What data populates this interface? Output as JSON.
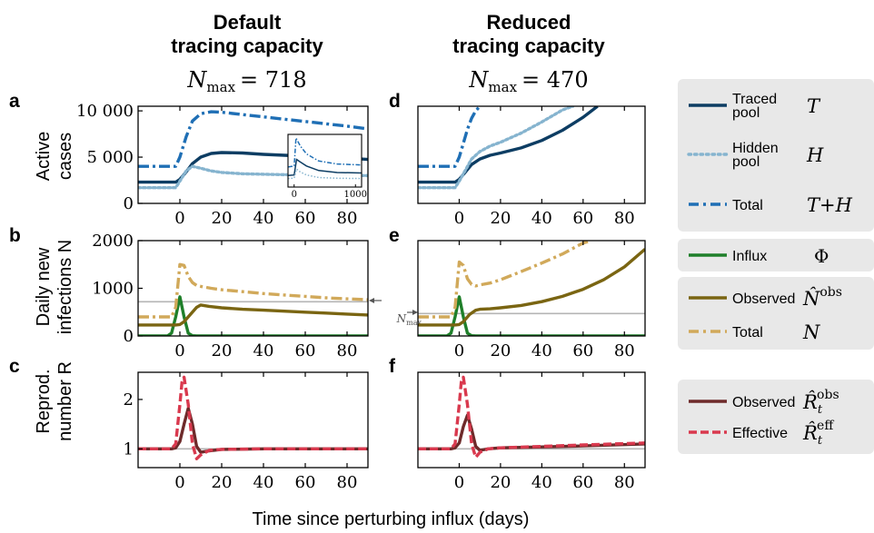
{
  "figure": {
    "xlabel": "Time since perturbing influx (days)",
    "columns": [
      {
        "title_line1": "Default",
        "title_line2": "tracing capacity",
        "nmax_label": "N",
        "nmax_sub": "max",
        "nmax_value": "= 718"
      },
      {
        "title_line1": "Reduced",
        "title_line2": "tracing capacity",
        "nmax_label": "N",
        "nmax_sub": "max",
        "nmax_value": "= 470"
      }
    ],
    "rows": [
      {
        "ylabel_line1": "Active",
        "ylabel_line2": "cases"
      },
      {
        "ylabel_line1": "Daily new",
        "ylabel_line2": "infections N"
      },
      {
        "ylabel_line1": "Reprod.",
        "ylabel_line2": "number R"
      }
    ],
    "panel_letters": [
      "a",
      "b",
      "c",
      "d",
      "e",
      "f"
    ],
    "nmax_annotation": "N",
    "nmax_annotation_sub": "max"
  },
  "legends": {
    "cases": [
      {
        "label_line1": "Traced",
        "label_line2": "pool",
        "symbol": "T",
        "color": "#0d3d63",
        "style": "solid"
      },
      {
        "label_line1": "Hidden",
        "label_line2": "pool",
        "symbol": "H",
        "color": "#86b4cf",
        "style": "dotted"
      },
      {
        "label_line1": "Total",
        "label_line2": "",
        "symbol": "T+H",
        "color": "#1f6fb5",
        "style": "dashdot"
      }
    ],
    "influx": {
      "label": "Influx",
      "symbol": "Φ",
      "color": "#1f7f2a",
      "style": "solid"
    },
    "infections": [
      {
        "label": "Observed",
        "symbol": "N̂",
        "sup": "obs",
        "color": "#7a6512",
        "style": "solid"
      },
      {
        "label": "Total",
        "symbol": "N",
        "sup": "",
        "color": "#d1a95a",
        "style": "dashdot"
      }
    ],
    "repro": [
      {
        "label": "Observed",
        "symbol": "R̂",
        "sub": "t",
        "sup": "obs",
        "color": "#6e2a2a",
        "style": "solid"
      },
      {
        "label": "Effective",
        "symbol": "R̂",
        "sub": "t",
        "sup": "eff",
        "color": "#d9394e",
        "style": "dashed"
      }
    ]
  },
  "chart_data": [
    {
      "panel": "a",
      "type": "line",
      "xlim": [
        -20,
        90
      ],
      "ylim": [
        0,
        10500
      ],
      "xticks": [
        0,
        20,
        40,
        60,
        80
      ],
      "xtick_labels": [
        "0",
        "20",
        "40",
        "60",
        "80"
      ],
      "yticks": [
        0,
        5000,
        10000
      ],
      "ytick_labels": [
        "0",
        "5 000",
        "10 000"
      ],
      "series": [
        {
          "key": "T",
          "color": "#0d3d63",
          "style": "solid",
          "x": [
            -20,
            -2,
            0,
            3,
            6,
            10,
            15,
            20,
            30,
            40,
            50,
            60,
            70,
            80,
            90
          ],
          "y": [
            2300,
            2300,
            2600,
            3400,
            4300,
            5000,
            5400,
            5500,
            5450,
            5300,
            5200,
            5100,
            5000,
            4900,
            4750
          ]
        },
        {
          "key": "H",
          "color": "#86b4cf",
          "style": "dotted",
          "x": [
            -20,
            -2,
            0,
            3,
            6,
            10,
            15,
            20,
            30,
            40,
            50,
            60,
            70,
            80,
            90
          ],
          "y": [
            1700,
            1700,
            2400,
            3500,
            4000,
            3800,
            3500,
            3350,
            3200,
            3150,
            3100,
            3080,
            3050,
            3030,
            3000
          ]
        },
        {
          "key": "T+H",
          "color": "#1f6fb5",
          "style": "dashdot",
          "x": [
            -20,
            -2,
            0,
            3,
            6,
            10,
            15,
            20,
            30,
            40,
            50,
            60,
            70,
            80,
            90
          ],
          "y": [
            4000,
            4000,
            5000,
            7200,
            8900,
            9700,
            9900,
            9850,
            9600,
            9350,
            9100,
            8850,
            8600,
            8350,
            8050
          ]
        }
      ],
      "inset": {
        "xlim": [
          -100,
          1100
        ],
        "ylim": [
          0,
          10500
        ],
        "xticks": [
          0,
          1000
        ],
        "xtick_labels": [
          "0",
          "1000"
        ],
        "series": [
          {
            "key": "T",
            "color": "#0d3d63",
            "style": "solid",
            "x": [
              -100,
              0,
              40,
              100,
              200,
              400,
              700,
              1100
            ],
            "y": [
              2300,
              2400,
              5500,
              5000,
              4200,
              3300,
              2900,
              2800
            ]
          },
          {
            "key": "H",
            "color": "#86b4cf",
            "style": "dotted",
            "x": [
              -100,
              0,
              40,
              100,
              200,
              400,
              700,
              1100
            ],
            "y": [
              1700,
              1800,
              3600,
              3000,
              2400,
              1900,
              1750,
              1700
            ]
          },
          {
            "key": "T+H",
            "color": "#1f6fb5",
            "style": "dashdot",
            "x": [
              -100,
              0,
              30,
              100,
              200,
              400,
              700,
              1100
            ],
            "y": [
              4000,
              4200,
              9800,
              8200,
              6600,
              5200,
              4600,
              4400
            ]
          }
        ]
      }
    },
    {
      "panel": "d",
      "type": "line",
      "xlim": [
        -20,
        90
      ],
      "ylim": [
        0,
        10500
      ],
      "xticks": [
        0,
        20,
        40,
        60,
        80
      ],
      "xtick_labels": [
        "0",
        "20",
        "40",
        "60",
        "80"
      ],
      "series": [
        {
          "key": "T",
          "color": "#0d3d63",
          "style": "solid",
          "x": [
            -20,
            -2,
            0,
            3,
            6,
            10,
            15,
            20,
            30,
            40,
            50,
            60,
            67
          ],
          "y": [
            2300,
            2300,
            2600,
            3400,
            4200,
            4800,
            5200,
            5450,
            6000,
            6800,
            7900,
            9300,
            10500
          ]
        },
        {
          "key": "H",
          "color": "#86b4cf",
          "style": "dotted",
          "x": [
            -20,
            -2,
            0,
            3,
            6,
            10,
            15,
            20,
            30,
            40,
            50,
            55
          ],
          "y": [
            1700,
            1700,
            2400,
            3600,
            4800,
            5600,
            6200,
            6600,
            7600,
            8800,
            10100,
            10500
          ]
        },
        {
          "key": "T+H",
          "color": "#1f6fb5",
          "style": "dashdot",
          "x": [
            -20,
            -2,
            0,
            2,
            4,
            6,
            8,
            10
          ],
          "y": [
            4000,
            4000,
            5000,
            6500,
            8000,
            9200,
            10000,
            10500
          ]
        }
      ]
    },
    {
      "panel": "b",
      "type": "line",
      "xlim": [
        -20,
        90
      ],
      "ylim": [
        0,
        2000
      ],
      "xticks": [
        0,
        20,
        40,
        60,
        80
      ],
      "xtick_labels": [
        "0",
        "20",
        "40",
        "60",
        "80"
      ],
      "yticks": [
        0,
        1000,
        2000
      ],
      "ytick_labels": [
        "0",
        "1000",
        "2000"
      ],
      "nmax": 718,
      "series": [
        {
          "key": "Phi",
          "color": "#1f7f2a",
          "style": "solid",
          "x": [
            -20,
            -6,
            -4,
            -2,
            0,
            2,
            4,
            6,
            8,
            90
          ],
          "y": [
            0,
            0,
            60,
            400,
            820,
            400,
            60,
            5,
            0,
            0
          ]
        },
        {
          "key": "N_obs",
          "color": "#7a6512",
          "style": "solid",
          "x": [
            -20,
            -2,
            0,
            2,
            5,
            8,
            10,
            14,
            20,
            30,
            40,
            50,
            60,
            70,
            80,
            90
          ],
          "y": [
            230,
            230,
            240,
            300,
            450,
            600,
            650,
            620,
            590,
            560,
            540,
            520,
            500,
            480,
            460,
            440
          ]
        },
        {
          "key": "N",
          "color": "#d1a95a",
          "style": "dashdot",
          "x": [
            -20,
            -4,
            -2,
            0,
            2,
            4,
            6,
            8,
            10,
            15,
            20,
            30,
            40,
            50,
            60,
            70,
            80,
            90
          ],
          "y": [
            400,
            400,
            600,
            1500,
            1480,
            1250,
            1120,
            1060,
            1040,
            1000,
            970,
            930,
            890,
            860,
            830,
            800,
            780,
            760
          ]
        }
      ]
    },
    {
      "panel": "e",
      "type": "line",
      "xlim": [
        -20,
        90
      ],
      "ylim": [
        0,
        2000
      ],
      "xticks": [
        0,
        20,
        40,
        60,
        80
      ],
      "xtick_labels": [
        "0",
        "20",
        "40",
        "60",
        "80"
      ],
      "nmax": 470,
      "series": [
        {
          "key": "Phi",
          "color": "#1f7f2a",
          "style": "solid",
          "x": [
            -20,
            -6,
            -4,
            -2,
            0,
            2,
            4,
            6,
            8,
            90
          ],
          "y": [
            0,
            0,
            60,
            400,
            820,
            400,
            60,
            5,
            0,
            0
          ]
        },
        {
          "key": "N_obs",
          "color": "#7a6512",
          "style": "solid",
          "x": [
            -20,
            -2,
            0,
            2,
            5,
            8,
            10,
            15,
            20,
            30,
            40,
            50,
            60,
            70,
            80,
            90
          ],
          "y": [
            230,
            230,
            240,
            300,
            450,
            540,
            560,
            570,
            590,
            640,
            720,
            830,
            980,
            1180,
            1450,
            1820
          ]
        },
        {
          "key": "N",
          "color": "#d1a95a",
          "style": "dashdot",
          "x": [
            -20,
            -4,
            -2,
            0,
            2,
            4,
            6,
            8,
            10,
            15,
            20,
            30,
            40,
            50,
            60,
            64
          ],
          "y": [
            400,
            400,
            600,
            1550,
            1480,
            1200,
            1080,
            1050,
            1070,
            1110,
            1180,
            1350,
            1530,
            1720,
            1950,
            2000
          ]
        }
      ]
    },
    {
      "panel": "c",
      "type": "line",
      "xlim": [
        -20,
        90
      ],
      "ylim": [
        0.62,
        2.55
      ],
      "xticks": [
        0,
        20,
        40,
        60,
        80
      ],
      "xtick_labels": [
        "0",
        "20",
        "40",
        "60",
        "80"
      ],
      "yticks": [
        1,
        2
      ],
      "ytick_labels": [
        "1",
        "2"
      ],
      "reference": 1,
      "series": [
        {
          "key": "R_obs",
          "color": "#6e2a2a",
          "style": "solid",
          "x": [
            -20,
            -4,
            -2,
            0,
            2,
            4,
            6,
            8,
            10,
            14,
            20,
            40,
            60,
            90
          ],
          "y": [
            1,
            1,
            1.02,
            1.15,
            1.5,
            1.82,
            1.5,
            1.05,
            0.93,
            0.96,
            0.99,
            1,
            1,
            1
          ]
        },
        {
          "key": "R_eff",
          "color": "#d9394e",
          "style": "dashed",
          "x": [
            -20,
            -4,
            -2,
            0,
            1,
            2,
            4,
            6,
            8,
            10,
            14,
            20,
            40,
            60,
            90
          ],
          "y": [
            1,
            1,
            1.1,
            1.9,
            2.35,
            2.45,
            1.9,
            1.1,
            0.8,
            0.88,
            0.97,
            0.99,
            1,
            1,
            1
          ]
        }
      ]
    },
    {
      "panel": "f",
      "type": "line",
      "xlim": [
        -20,
        90
      ],
      "ylim": [
        0.62,
        2.55
      ],
      "xticks": [
        0,
        20,
        40,
        60,
        80
      ],
      "xtick_labels": [
        "0",
        "20",
        "40",
        "60",
        "80"
      ],
      "reference": 1,
      "series": [
        {
          "key": "R_obs",
          "color": "#6e2a2a",
          "style": "solid",
          "x": [
            -20,
            -4,
            -2,
            0,
            2,
            4,
            6,
            8,
            10,
            14,
            20,
            40,
            60,
            90
          ],
          "y": [
            1,
            1,
            1.02,
            1.12,
            1.45,
            1.68,
            1.4,
            1.05,
            0.97,
            1.0,
            1.02,
            1.04,
            1.06,
            1.1
          ]
        },
        {
          "key": "R_eff",
          "color": "#d9394e",
          "style": "dashed",
          "x": [
            -20,
            -4,
            -2,
            0,
            1,
            2,
            4,
            6,
            8,
            10,
            14,
            20,
            40,
            60,
            90
          ],
          "y": [
            1,
            1,
            1.1,
            1.9,
            2.35,
            2.45,
            1.9,
            1.1,
            0.83,
            0.93,
            1.0,
            1.02,
            1.05,
            1.08,
            1.12
          ]
        }
      ]
    }
  ]
}
